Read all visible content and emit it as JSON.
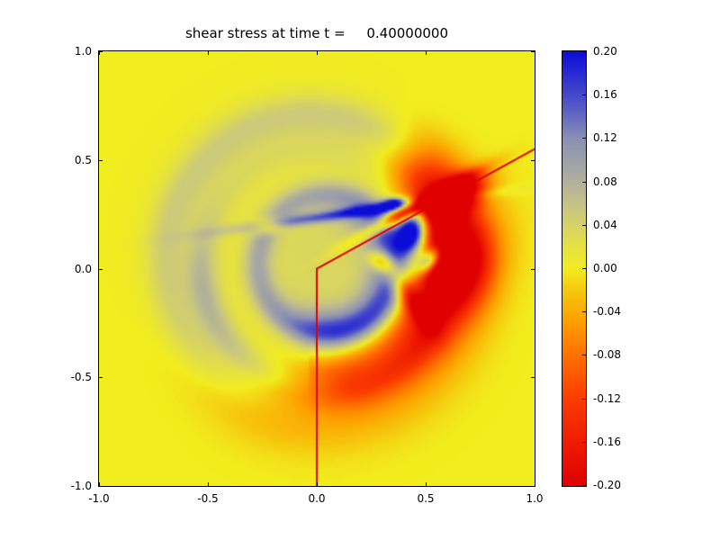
{
  "title": "shear stress at time t =     0.40000000",
  "axes": {
    "xtick_labels": [
      "-1.0",
      "-0.5",
      "0.0",
      "0.5",
      "1.0"
    ],
    "ytick_labels": [
      "1.0",
      "0.5",
      "0.0",
      "-0.5",
      "-1.0"
    ]
  },
  "colorbar": {
    "tick_labels": [
      "0.20",
      "0.16",
      "0.12",
      "0.08",
      "0.04",
      "0.00",
      "-0.04",
      "-0.08",
      "-0.12",
      "-0.16",
      "-0.20"
    ]
  },
  "chart_data": {
    "type": "heatmap",
    "title": "shear stress at time t =     0.40000000",
    "xlim": [
      -1.0,
      1.0
    ],
    "ylim": [
      -1.0,
      1.0
    ],
    "vmin": -0.2,
    "vmax": 0.2,
    "xticks": [
      -1.0,
      -0.5,
      0.0,
      0.5,
      1.0
    ],
    "yticks": [
      -1.0,
      -0.5,
      0.0,
      0.5,
      1.0
    ],
    "colorbar_ticks": [
      0.2,
      0.16,
      0.12,
      0.08,
      0.04,
      0.0,
      -0.04,
      -0.08,
      -0.12,
      -0.16,
      -0.2
    ],
    "background_value": 0.0,
    "grid": false,
    "colormap_stops": [
      [
        0.0,
        "#e00000"
      ],
      [
        0.1,
        "#ee1c00"
      ],
      [
        0.2,
        "#fb3c00"
      ],
      [
        0.3,
        "#ff7000"
      ],
      [
        0.38,
        "#ffa000"
      ],
      [
        0.45,
        "#f6c80e"
      ],
      [
        0.5,
        "#f2ed1e"
      ],
      [
        0.56,
        "#e3df4a"
      ],
      [
        0.64,
        "#c9c683"
      ],
      [
        0.72,
        "#a9a9a2"
      ],
      [
        0.8,
        "#8a90b4"
      ],
      [
        0.88,
        "#5055c8"
      ],
      [
        1.0,
        "#0c0cd8"
      ]
    ],
    "overlay_line": {
      "color": "#e00000",
      "width": 2,
      "points": [
        [
          0.0,
          -1.0
        ],
        [
          0.0,
          0.0
        ],
        [
          1.0,
          0.55
        ]
      ]
    },
    "field_features": [
      {
        "type": "disc",
        "cx": -0.05,
        "cy": 0.08,
        "sigma": 0.42,
        "amp": 0.018
      },
      {
        "type": "ring",
        "cx": -0.03,
        "cy": 0.05,
        "r": 0.66,
        "w": 0.07,
        "amp": 0.045
      },
      {
        "type": "ring",
        "cx": -0.03,
        "cy": 0.05,
        "r": 0.5,
        "w": 0.06,
        "amp": 0.02,
        "ang0": 90,
        "ang1": 290,
        "soft": 40
      },
      {
        "type": "ring",
        "cx": 0.05,
        "cy": 0.02,
        "r": 0.32,
        "w": 0.045,
        "amp": 0.07
      },
      {
        "type": "disc",
        "cx": 0.05,
        "cy": 0.02,
        "sigma": 0.22,
        "amp": 0.02
      },
      {
        "type": "ring",
        "cx": 0.05,
        "cy": 0.0,
        "r": 0.27,
        "w": 0.07,
        "amp": 0.1,
        "ang0": -80,
        "ang1": 20,
        "soft": 35
      },
      {
        "type": "ring",
        "cx": 0.0,
        "cy": 0.0,
        "r": 0.53,
        "w": 0.05,
        "amp": 0.05,
        "ang0": 195,
        "ang1": 320,
        "soft": 25
      },
      {
        "type": "blob",
        "cx": 0.44,
        "cy": 0.17,
        "sL": 0.07,
        "sT": 0.045,
        "angle": 80,
        "amp": 0.3
      },
      {
        "type": "blob",
        "cx": 0.52,
        "cy": 0.04,
        "sL": 0.05,
        "sT": 0.03,
        "angle": 45,
        "amp": 0.22
      },
      {
        "type": "blob",
        "cx": 0.35,
        "cy": 0.3,
        "sL": 0.04,
        "sT": 0.018,
        "angle": 10,
        "amp": 0.2
      },
      {
        "type": "blob",
        "cx": 0.18,
        "cy": 0.26,
        "sL": 0.36,
        "sT": 0.018,
        "angle": 8,
        "amp": 0.13
      },
      {
        "type": "blob",
        "cx": -0.22,
        "cy": 0.2,
        "sL": 0.05,
        "sT": 0.025,
        "angle": 8,
        "amp": -0.12
      },
      {
        "type": "blob",
        "cx": 0.45,
        "cy": 0.285,
        "sL": 0.2,
        "sT": 0.022,
        "angle": 29,
        "amp": -0.22
      },
      {
        "type": "blob",
        "cx": 0.63,
        "cy": 0.33,
        "sL": 0.1,
        "sT": 0.05,
        "angle": 29,
        "amp": -0.26
      },
      {
        "type": "ring",
        "cx": 0.0,
        "cy": 0.0,
        "r": 0.66,
        "w": 0.1,
        "amp": -0.18,
        "ang0": 8,
        "ang1": 35,
        "soft": 14
      },
      {
        "type": "ring",
        "cx": 0.02,
        "cy": 0.02,
        "r": 0.56,
        "w": 0.08,
        "amp": -0.16,
        "ang0": -70,
        "ang1": -8,
        "soft": 25
      },
      {
        "type": "ring",
        "cx": 0.0,
        "cy": 0.0,
        "r": 0.62,
        "w": 0.14,
        "amp": -0.06,
        "ang0": -100,
        "ang1": -40,
        "soft": 30
      },
      {
        "type": "blob",
        "cx": 0.62,
        "cy": -0.05,
        "sL": 0.22,
        "sT": 0.12,
        "angle": 60,
        "amp": -0.1
      },
      {
        "type": "blob",
        "cx": 0.3,
        "cy": 0.03,
        "sL": 0.05,
        "sT": 0.03,
        "angle": -30,
        "amp": -0.12
      },
      {
        "type": "blob",
        "cx": 0.42,
        "cy": -0.12,
        "sL": 0.12,
        "sT": 0.035,
        "angle": -55,
        "amp": -0.12
      }
    ]
  }
}
